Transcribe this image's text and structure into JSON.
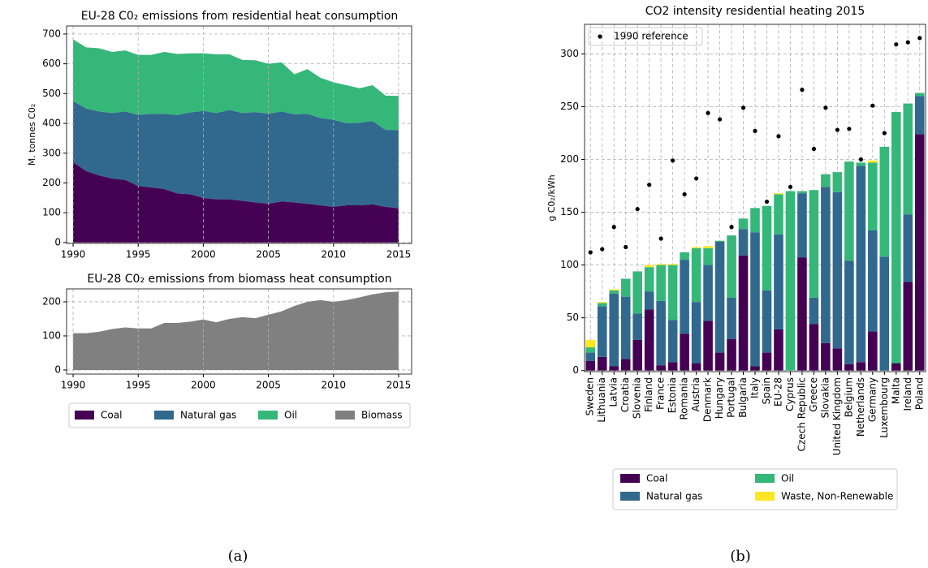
{
  "chart_data": [
    {
      "type": "stacked_area",
      "title": "EU-28 C0₂ emissions from residential heat consumption",
      "ylabel": "M. tonnes C0₂",
      "x": [
        1990,
        1991,
        1992,
        1993,
        1994,
        1995,
        1996,
        1997,
        1998,
        1999,
        2000,
        2001,
        2002,
        2003,
        2004,
        2005,
        2006,
        2007,
        2008,
        2009,
        2010,
        2011,
        2012,
        2013,
        2014,
        2015
      ],
      "series": [
        {
          "name": "Coal",
          "color": "#440154",
          "values": [
            270,
            240,
            225,
            215,
            210,
            190,
            185,
            180,
            165,
            162,
            150,
            145,
            145,
            140,
            135,
            130,
            138,
            135,
            130,
            125,
            120,
            125,
            125,
            128,
            120,
            115
          ]
        },
        {
          "name": "Natural gas",
          "color": "#31688e",
          "values": [
            205,
            210,
            215,
            220,
            230,
            238,
            247,
            252,
            263,
            275,
            292,
            290,
            300,
            295,
            303,
            302,
            302,
            295,
            302,
            293,
            292,
            275,
            277,
            280,
            258,
            263
          ]
        },
        {
          "name": "Oil",
          "color": "#35b779",
          "values": [
            207,
            205,
            212,
            205,
            205,
            202,
            198,
            208,
            205,
            198,
            193,
            197,
            187,
            178,
            174,
            168,
            165,
            135,
            150,
            135,
            126,
            128,
            116,
            120,
            115,
            114
          ]
        }
      ],
      "xlim": [
        1989.5,
        2016
      ],
      "xticks": [
        1990,
        1995,
        2000,
        2005,
        2010,
        2015
      ],
      "ylim": [
        -3,
        727
      ],
      "yticks": [
        0,
        100,
        200,
        300,
        400,
        500,
        600,
        700
      ],
      "grid": true
    },
    {
      "type": "stacked_area",
      "title": "EU-28 C0₂ emissions from biomass heat consumption",
      "x": [
        1990,
        1991,
        1992,
        1993,
        1994,
        1995,
        1996,
        1997,
        1998,
        1999,
        2000,
        2001,
        2002,
        2003,
        2004,
        2005,
        2006,
        2007,
        2008,
        2009,
        2010,
        2011,
        2012,
        2013,
        2014,
        2015
      ],
      "series": [
        {
          "name": "Biomass",
          "color": "#808080",
          "values": [
            108,
            108,
            112,
            120,
            125,
            122,
            122,
            138,
            138,
            142,
            148,
            140,
            150,
            155,
            152,
            162,
            172,
            188,
            200,
            205,
            200,
            205,
            213,
            222,
            228,
            230
          ]
        }
      ],
      "xlim": [
        1989.5,
        2016
      ],
      "xticks": [
        1990,
        1995,
        2000,
        2005,
        2010,
        2015
      ],
      "ylim": [
        -12,
        238
      ],
      "yticks": [
        0,
        100,
        200
      ],
      "grid": true
    },
    {
      "type": "stacked_bar",
      "title": "CO2 intensity residential heating 2015",
      "ylabel": "g C0₂/kWh",
      "categories": [
        "Sweden",
        "Lithuania",
        "Latvia",
        "Croatia",
        "Slovenia",
        "Finland",
        "France",
        "Estonia",
        "Romania",
        "Austria",
        "Denmark",
        "Hungary",
        "Portugal",
        "Bulgaria",
        "Italy",
        "Spain",
        "EU-28",
        "Cyprus",
        "Czech Republic",
        "Greece",
        "Slovakia",
        "United Kingdom",
        "Belgium",
        "Netherlands",
        "Germany",
        "Luxembourg",
        "Malta",
        "Ireland",
        "Poland"
      ],
      "series": [
        {
          "name": "Coal",
          "color": "#440154",
          "values": [
            9,
            13,
            4,
            11,
            29,
            58,
            5,
            8,
            35,
            7,
            47,
            17,
            30,
            109,
            4,
            17,
            39,
            0,
            107,
            44,
            26,
            21,
            6,
            8,
            37,
            0,
            7,
            84,
            224
          ]
        },
        {
          "name": "Natural gas",
          "color": "#31688e",
          "values": [
            8,
            48,
            69,
            59,
            25,
            17,
            61,
            40,
            70,
            58,
            53,
            105,
            39,
            25,
            127,
            59,
            90,
            0,
            61,
            25,
            148,
            148,
            98,
            186,
            96,
            108,
            0,
            64,
            36
          ]
        },
        {
          "name": "Oil",
          "color": "#35b779",
          "values": [
            5,
            3,
            3,
            17,
            40,
            23,
            34,
            52,
            7,
            51,
            16,
            1,
            59,
            10,
            23,
            80,
            38,
            170,
            2,
            102,
            12,
            19,
            94,
            3,
            64,
            104,
            238,
            105,
            3
          ]
        },
        {
          "name": "Waste, Non-Renewable",
          "color": "#fde725",
          "values": [
            7,
            1,
            1,
            0,
            0,
            2,
            1,
            1,
            0,
            1,
            2,
            0,
            0,
            0,
            0,
            0,
            1,
            0,
            0,
            0,
            0,
            0,
            0,
            0,
            2,
            0,
            0,
            0,
            0
          ]
        }
      ],
      "reference": {
        "name": "1990 reference",
        "color": "#000000",
        "values": [
          112,
          115,
          136,
          117,
          153,
          176,
          125,
          199,
          167,
          182,
          244,
          238,
          136,
          249,
          227,
          160,
          222,
          174,
          266,
          210,
          249,
          228,
          229,
          200,
          251,
          225,
          309,
          311,
          315
        ]
      },
      "ylim": [
        -1,
        328
      ],
      "yticks": [
        0,
        50,
        100,
        150,
        200,
        250,
        300
      ],
      "grid": true
    }
  ],
  "captions": [
    "(a)",
    "(b)"
  ]
}
